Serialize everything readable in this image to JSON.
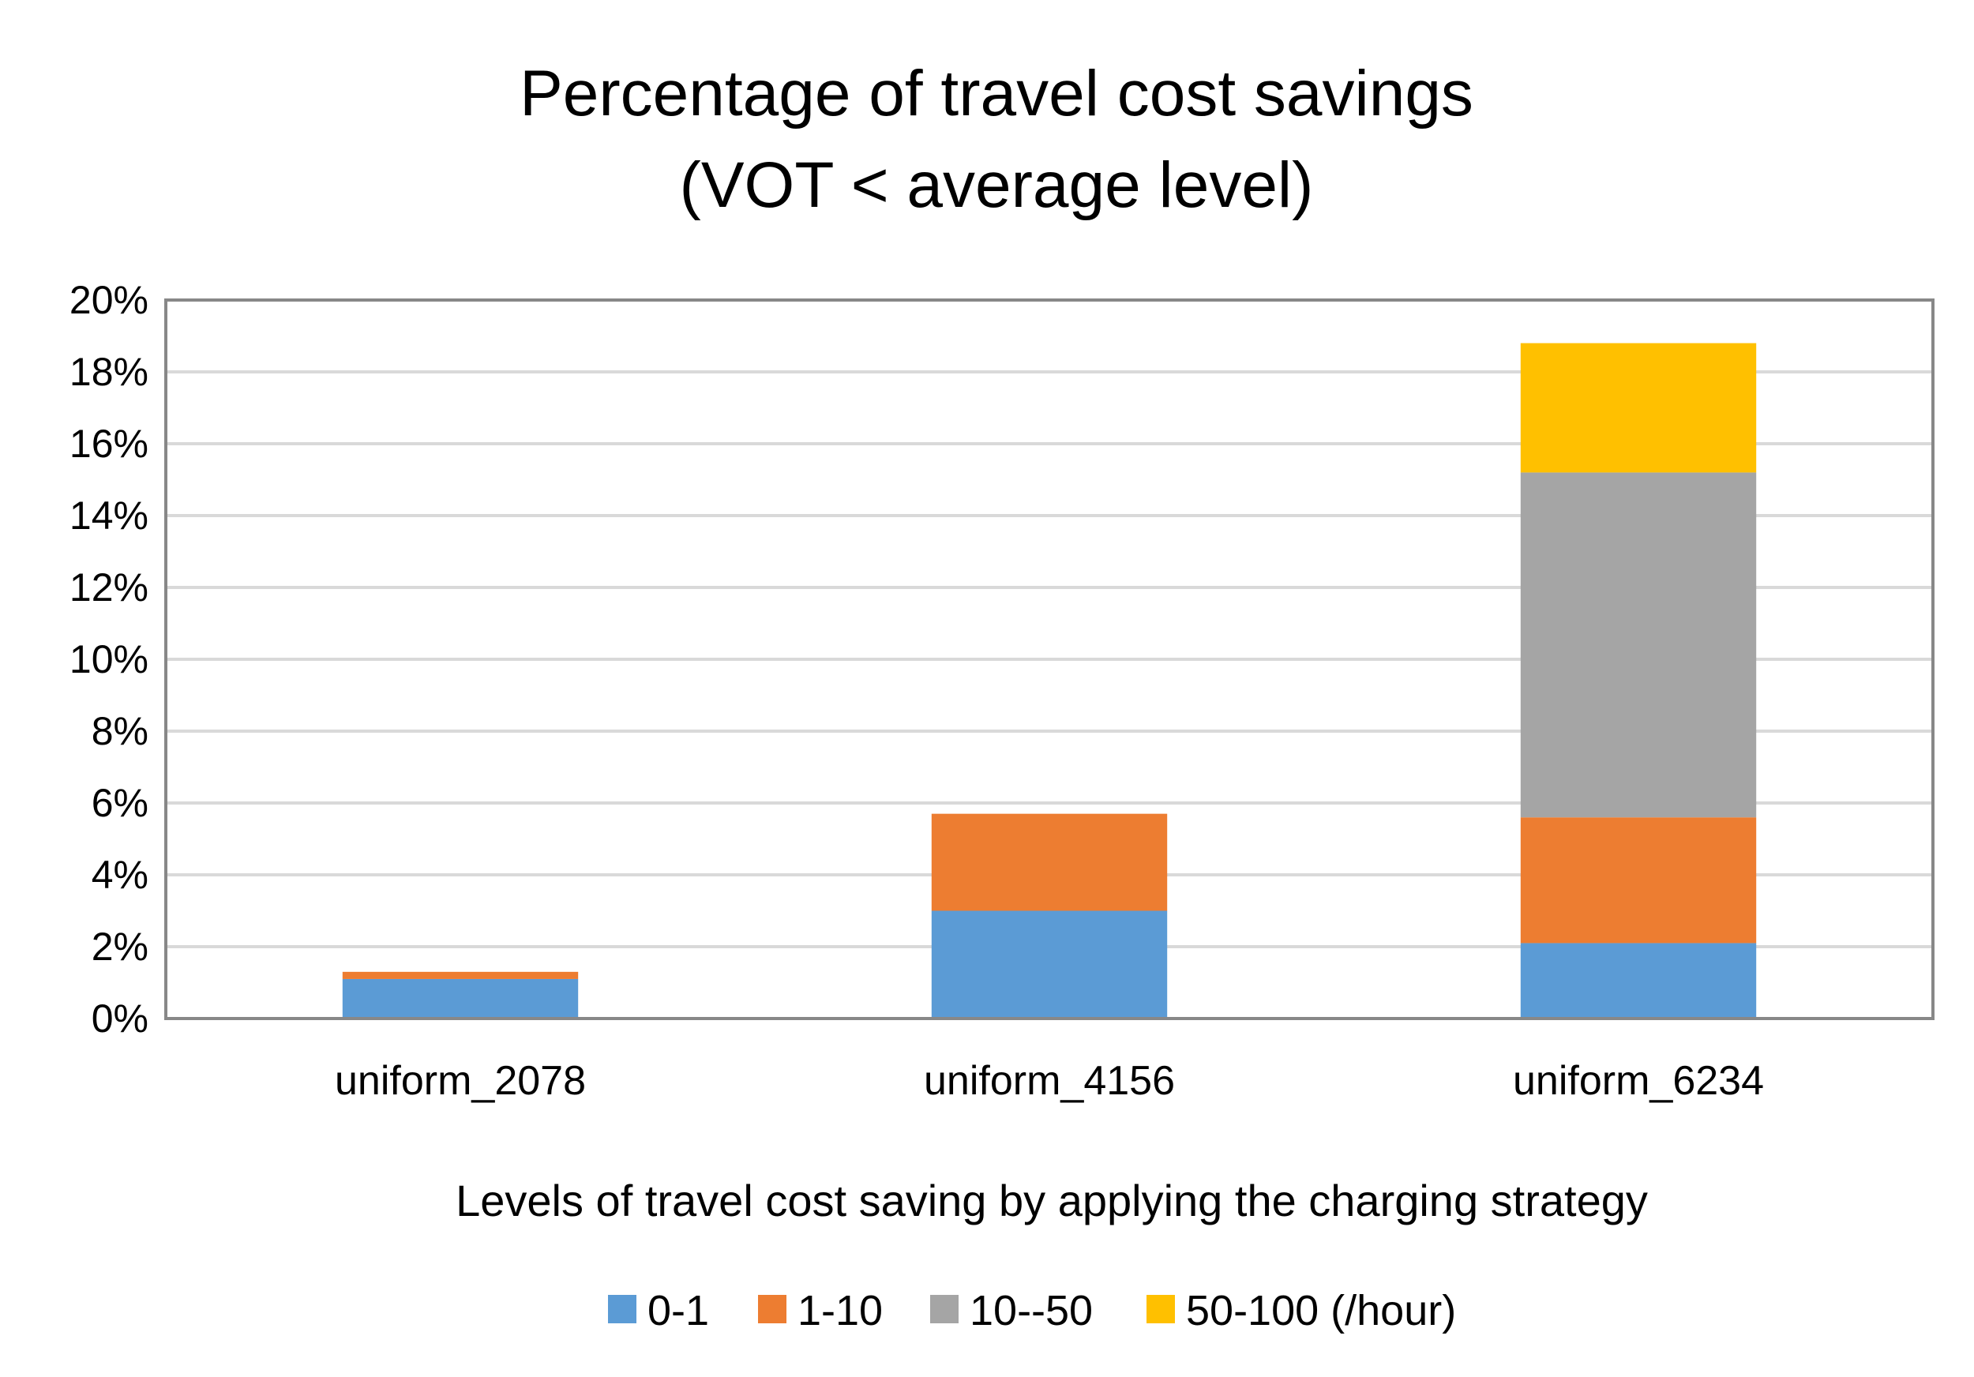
{
  "chart_data": {
    "type": "bar",
    "stacked": true,
    "title": "Percentage of travel cost savings",
    "subtitle": "(VOT < average level)",
    "xlabel": "Levels of travel cost saving by applying the charging strategy",
    "ylabel": "",
    "categories": [
      "uniform_2078",
      "uniform_4156",
      "uniform_6234"
    ],
    "ylim": [
      0,
      20
    ],
    "yticks": [
      "0%",
      "2%",
      "4%",
      "6%",
      "8%",
      "10%",
      "12%",
      "14%",
      "16%",
      "18%",
      "20%"
    ],
    "grid": true,
    "legend_position": "bottom",
    "series": [
      {
        "name": "0-1",
        "color": "#5B9BD5",
        "values": [
          1.1,
          3.0,
          2.1
        ]
      },
      {
        "name": "1-10",
        "color": "#ED7D31",
        "values": [
          0.2,
          2.7,
          3.5
        ]
      },
      {
        "name": "10--50",
        "color": "#A5A5A5",
        "values": [
          0.0,
          0.0,
          9.6
        ]
      },
      {
        "name": "50-100 (/hour)",
        "color": "#FFC000",
        "values": [
          0.0,
          0.0,
          3.6
        ]
      }
    ]
  }
}
